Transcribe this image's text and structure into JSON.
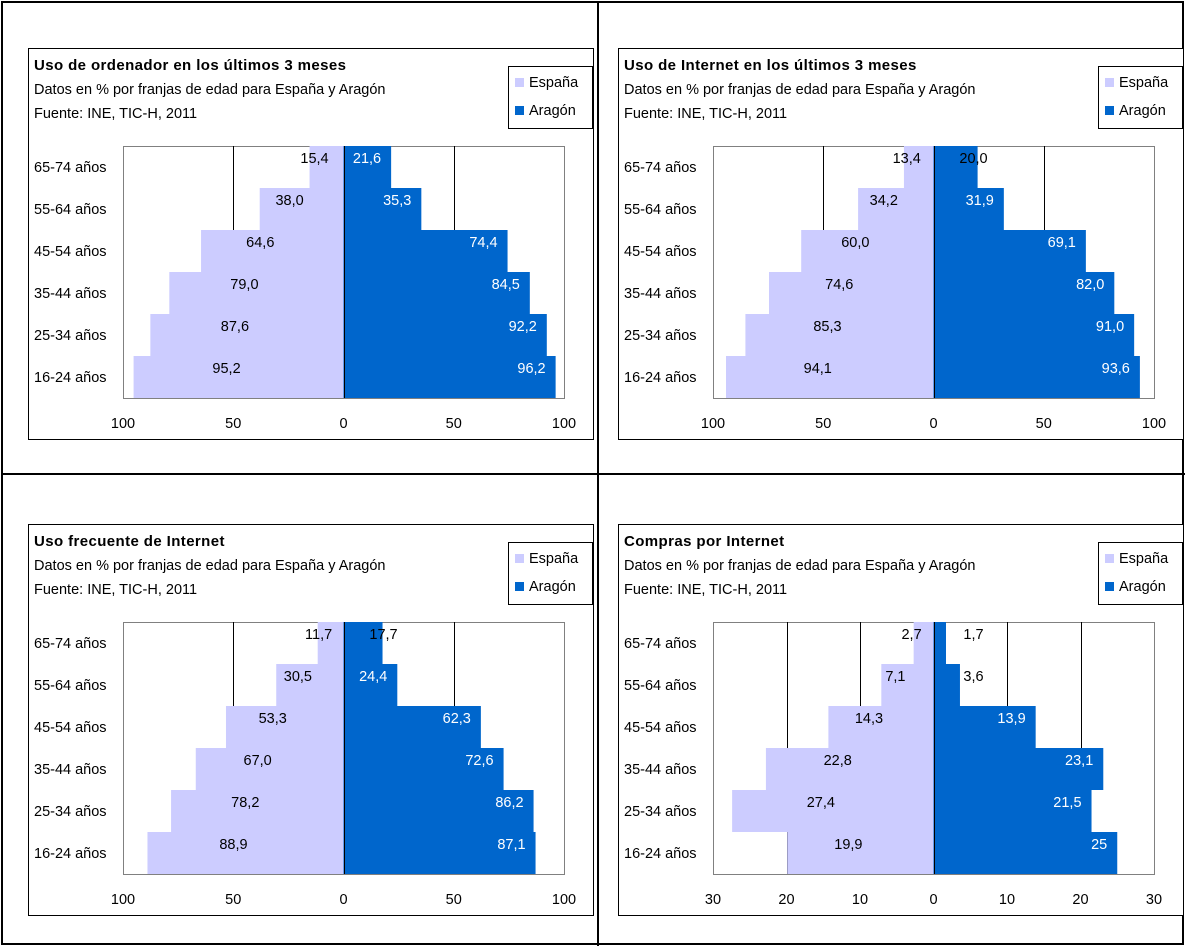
{
  "colors": {
    "spain": "#ccccff",
    "aragon": "#0066cc",
    "frame": "#000000"
  },
  "chart_data": [
    {
      "type": "bar",
      "title": "Uso de ordenador en los últimos 3 meses",
      "subtitle": "Datos en % por franjas de edad para España y Aragón",
      "source": "Fuente: INE, TIC-H, 2011",
      "categories": [
        "65-74 años",
        "55-64 años",
        "45-54 años",
        "35-44 años",
        "25-34 años",
        "16-24 años"
      ],
      "series": [
        {
          "name": "España",
          "values": [
            15.4,
            38.0,
            64.6,
            79.0,
            87.6,
            95.2
          ],
          "labels": [
            "15,4",
            "38,0",
            "64,6",
            "79,0",
            "87,6",
            "95,2"
          ]
        },
        {
          "name": "Aragón",
          "values": [
            21.6,
            35.3,
            74.4,
            84.5,
            92.2,
            96.2
          ],
          "labels": [
            "21,6",
            "35,3",
            "74,4",
            "84,5",
            "92,2",
            "96,2"
          ]
        }
      ],
      "xlim": [
        -100,
        100
      ],
      "xticks": [
        -100,
        -50,
        0,
        50,
        100
      ],
      "xtick_labels": [
        "100",
        "50",
        "0",
        "50",
        "100"
      ],
      "grid": "vertical",
      "legend": "top-right"
    },
    {
      "type": "bar",
      "title": "Uso de Internet en los últimos 3 meses",
      "subtitle": "Datos en % por franjas de edad para España y Aragón",
      "source": "Fuente: INE, TIC-H, 2011",
      "categories": [
        "65-74 años",
        "55-64 años",
        "45-54 años",
        "35-44 años",
        "25-34 años",
        "16-24 años"
      ],
      "series": [
        {
          "name": "España",
          "values": [
            13.4,
            34.2,
            60.0,
            74.6,
            85.3,
            94.1
          ],
          "labels": [
            "13,4",
            "34,2",
            "60,0",
            "74,6",
            "85,3",
            "94,1"
          ]
        },
        {
          "name": "Aragón",
          "values": [
            20.0,
            31.9,
            69.1,
            82.0,
            91.0,
            93.6
          ],
          "labels": [
            "20,0",
            "31,9",
            "69,1",
            "82,0",
            "91,0",
            "93,6"
          ]
        }
      ],
      "xlim": [
        -100,
        100
      ],
      "xticks": [
        -100,
        -50,
        0,
        50,
        100
      ],
      "xtick_labels": [
        "100",
        "50",
        "0",
        "50",
        "100"
      ],
      "grid": "vertical",
      "legend": "top-right"
    },
    {
      "type": "bar",
      "title": "Uso frecuente de Internet",
      "subtitle": "Datos en % por franjas de edad para España y Aragón",
      "source": "Fuente: INE, TIC-H, 2011",
      "categories": [
        "65-74 años",
        "55-64 años",
        "45-54 años",
        "35-44 años",
        "25-34 años",
        "16-24 años"
      ],
      "series": [
        {
          "name": "España",
          "values": [
            11.7,
            30.5,
            53.3,
            67.0,
            78.2,
            88.9
          ],
          "labels": [
            "11,7",
            "30,5",
            "53,3",
            "67,0",
            "78,2",
            "88,9"
          ]
        },
        {
          "name": "Aragón",
          "values": [
            17.7,
            24.4,
            62.3,
            72.6,
            86.2,
            87.1
          ],
          "labels": [
            "17,7",
            "24,4",
            "62,3",
            "72,6",
            "86,2",
            "87,1"
          ]
        }
      ],
      "xlim": [
        -100,
        100
      ],
      "xticks": [
        -100,
        -50,
        0,
        50,
        100
      ],
      "xtick_labels": [
        "100",
        "50",
        "0",
        "50",
        "100"
      ],
      "grid": "vertical",
      "legend": "top-right"
    },
    {
      "type": "bar",
      "title": "Compras por Internet",
      "subtitle": "Datos en % por franjas de edad para España y Aragón",
      "source": "Fuente: INE, TIC-H, 2011",
      "categories": [
        "65-74 años",
        "55-64 años",
        "45-54 años",
        "35-44 años",
        "25-34 años",
        "16-24 años"
      ],
      "series": [
        {
          "name": "España",
          "values": [
            2.7,
            7.1,
            14.3,
            22.8,
            27.4,
            19.9
          ],
          "labels": [
            "2,7",
            "7,1",
            "14,3",
            "22,8",
            "27,4",
            "19,9"
          ]
        },
        {
          "name": "Aragón",
          "values": [
            1.7,
            3.6,
            13.9,
            23.1,
            21.5,
            25
          ],
          "labels": [
            "1,7",
            "3,6",
            "13,9",
            "23,1",
            "21,5",
            "25"
          ]
        }
      ],
      "xlim": [
        -30,
        30
      ],
      "xticks": [
        -30,
        -20,
        -10,
        0,
        10,
        20,
        30
      ],
      "xtick_labels": [
        "30",
        "20",
        "10",
        "0",
        "10",
        "20",
        "30"
      ],
      "grid": "vertical",
      "legend": "top-right"
    }
  ]
}
